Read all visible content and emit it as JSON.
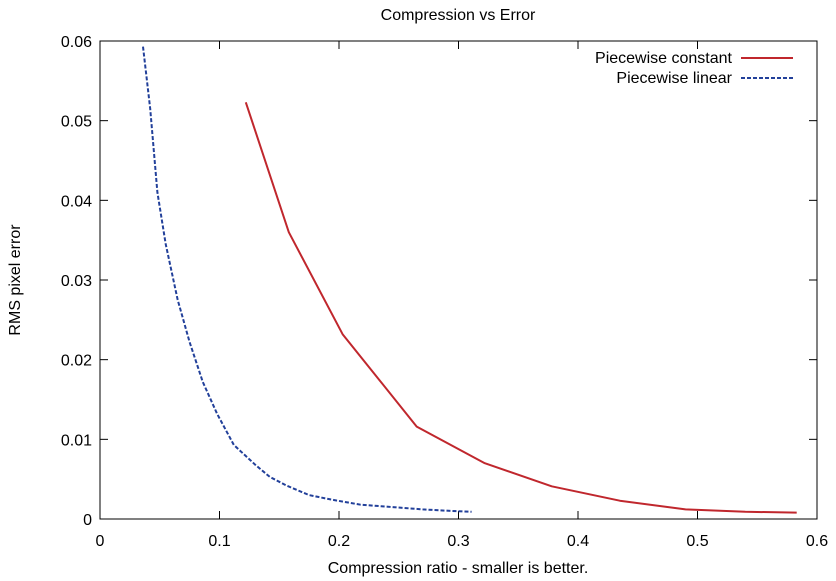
{
  "chart_data": {
    "type": "line",
    "title": "Compression vs Error",
    "xlabel": "Compression ratio - smaller is better.",
    "ylabel": "RMS pixel error",
    "xlim": [
      0,
      0.6
    ],
    "ylim": [
      0,
      0.06
    ],
    "x_ticks": [
      0,
      0.1,
      0.2,
      0.3,
      0.4,
      0.5,
      0.6
    ],
    "x_tick_labels": [
      "0",
      "0.1",
      "0.2",
      "0.3",
      "0.4",
      "0.5",
      "0.6"
    ],
    "y_ticks": [
      0,
      0.01,
      0.02,
      0.03,
      0.04,
      0.05,
      0.06
    ],
    "y_tick_labels": [
      "0",
      "0.01",
      "0.02",
      "0.03",
      "0.04",
      "0.05",
      "0.06"
    ],
    "grid": false,
    "legend_position": "top-right",
    "series": [
      {
        "name": "Piecewise constant",
        "color": "#c0272d",
        "dash": "solid",
        "points": [
          [
            0.122,
            0.0523
          ],
          [
            0.158,
            0.036
          ],
          [
            0.203,
            0.0232
          ],
          [
            0.265,
            0.0116
          ],
          [
            0.322,
            0.007
          ],
          [
            0.378,
            0.0041
          ],
          [
            0.435,
            0.0023
          ],
          [
            0.49,
            0.0012
          ],
          [
            0.54,
            0.0009
          ],
          [
            0.583,
            0.0008
          ]
        ]
      },
      {
        "name": "Piecewise linear",
        "color": "#22409a",
        "dash": "dashed",
        "points": [
          [
            0.036,
            0.0593
          ],
          [
            0.042,
            0.0515
          ],
          [
            0.048,
            0.041
          ],
          [
            0.055,
            0.0345
          ],
          [
            0.065,
            0.0275
          ],
          [
            0.075,
            0.0222
          ],
          [
            0.086,
            0.0172
          ],
          [
            0.098,
            0.0132
          ],
          [
            0.112,
            0.0093
          ],
          [
            0.13,
            0.0068
          ],
          [
            0.142,
            0.0053
          ],
          [
            0.156,
            0.0042
          ],
          [
            0.175,
            0.003
          ],
          [
            0.195,
            0.0024
          ],
          [
            0.218,
            0.0018
          ],
          [
            0.245,
            0.0015
          ],
          [
            0.27,
            0.0012
          ],
          [
            0.295,
            0.001
          ],
          [
            0.311,
            0.0009
          ]
        ]
      }
    ]
  }
}
